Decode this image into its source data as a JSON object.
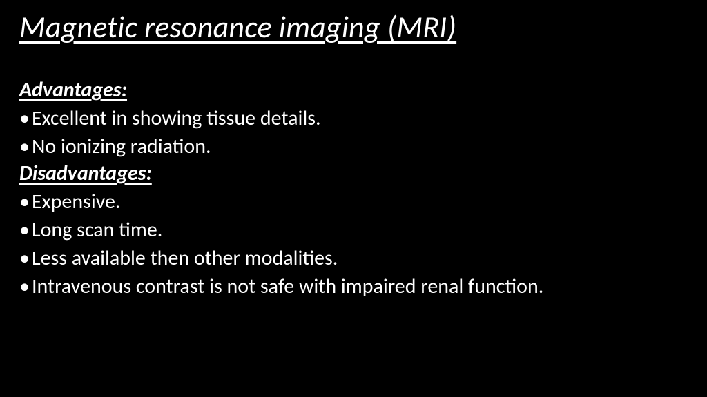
{
  "background_color": "#000000",
  "text_color": "#ffffff",
  "title": "Magnetic resonance imaging (MRI)",
  "title_fontsize": 44,
  "title_style": "italic underline",
  "sections": [
    {
      "heading": "Advantages:",
      "heading_fontsize": 30,
      "heading_style": "bold italic underline",
      "bullets": [
        "Excellent in showing tissue details.",
        "No ionizing  radiation."
      ],
      "bullet_fontsize": 30
    },
    {
      "heading": "Disadvantages:",
      "heading_fontsize": 30,
      "heading_style": "bold italic underline",
      "bullets": [
        "Expensive.",
        "Long scan time.",
        "Less available then other modalities.",
        "Intravenous contrast is not safe with impaired renal function."
      ],
      "bullet_fontsize": 30
    }
  ]
}
